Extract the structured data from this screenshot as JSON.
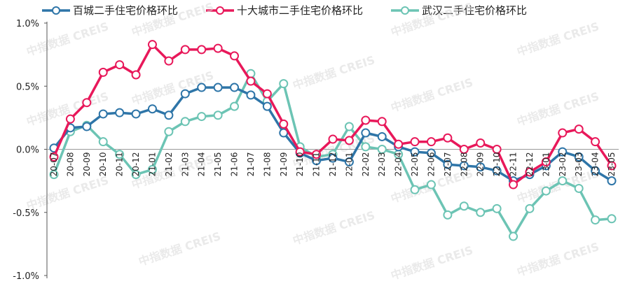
{
  "chart_data": {
    "type": "line",
    "categories": [
      "20-07",
      "20-08",
      "20-09",
      "20-10",
      "20-11",
      "20-12",
      "21-01",
      "21-02",
      "21-03",
      "21-04",
      "21-05",
      "21-06",
      "21-07",
      "21-08",
      "21-09",
      "21-10",
      "21-11",
      "21-12",
      "22-01",
      "22-02",
      "22-03",
      "22-04",
      "22-05",
      "22-06",
      "22-07",
      "22-08",
      "22-09",
      "22-10",
      "22-11",
      "22-12",
      "23-01",
      "23-02",
      "23-03",
      "23-04",
      "23-05"
    ],
    "yticks": [
      "1.0%",
      "0.5%",
      "0.0%",
      "-0.5%",
      "-1.0%"
    ],
    "ylim": [
      -1.0,
      1.0
    ],
    "series": [
      {
        "name": "百城二手住宅价格环比",
        "color": "#2e75a8",
        "values": [
          0.01,
          0.17,
          0.18,
          0.28,
          0.29,
          0.28,
          0.32,
          0.27,
          0.44,
          0.49,
          0.49,
          0.49,
          0.43,
          0.34,
          0.13,
          -0.03,
          -0.09,
          -0.07,
          -0.1,
          0.13,
          0.1,
          0.02,
          -0.02,
          -0.03,
          -0.12,
          -0.13,
          -0.14,
          -0.17,
          -0.25,
          -0.2,
          -0.13,
          -0.02,
          -0.06,
          -0.17,
          -0.25
        ]
      },
      {
        "name": "十大城市二手住宅价格环比",
        "color": "#e8185a",
        "values": [
          -0.06,
          0.24,
          0.37,
          0.61,
          0.67,
          0.59,
          0.83,
          0.7,
          0.79,
          0.79,
          0.8,
          0.74,
          0.54,
          0.44,
          0.2,
          -0.02,
          -0.04,
          0.08,
          0.07,
          0.23,
          0.22,
          0.04,
          0.06,
          0.06,
          0.09,
          0.0,
          0.05,
          0.0,
          -0.28,
          -0.18,
          -0.1,
          0.13,
          0.16,
          0.06,
          -0.13
        ]
      },
      {
        "name": "武汉二手住宅价格环比",
        "color": "#6cc4b4",
        "values": [
          -0.2,
          0.14,
          0.19,
          0.06,
          -0.04,
          -0.2,
          -0.16,
          0.14,
          0.22,
          0.26,
          0.27,
          0.34,
          0.6,
          0.38,
          0.52,
          0.02,
          -0.06,
          -0.04,
          0.18,
          0.02,
          0.0,
          -0.04,
          -0.32,
          -0.28,
          -0.52,
          -0.45,
          -0.5,
          -0.47,
          -0.69,
          -0.47,
          -0.33,
          -0.25,
          -0.31,
          -0.56,
          -0.55
        ]
      }
    ]
  },
  "watermark": "中指数据 CREIS"
}
